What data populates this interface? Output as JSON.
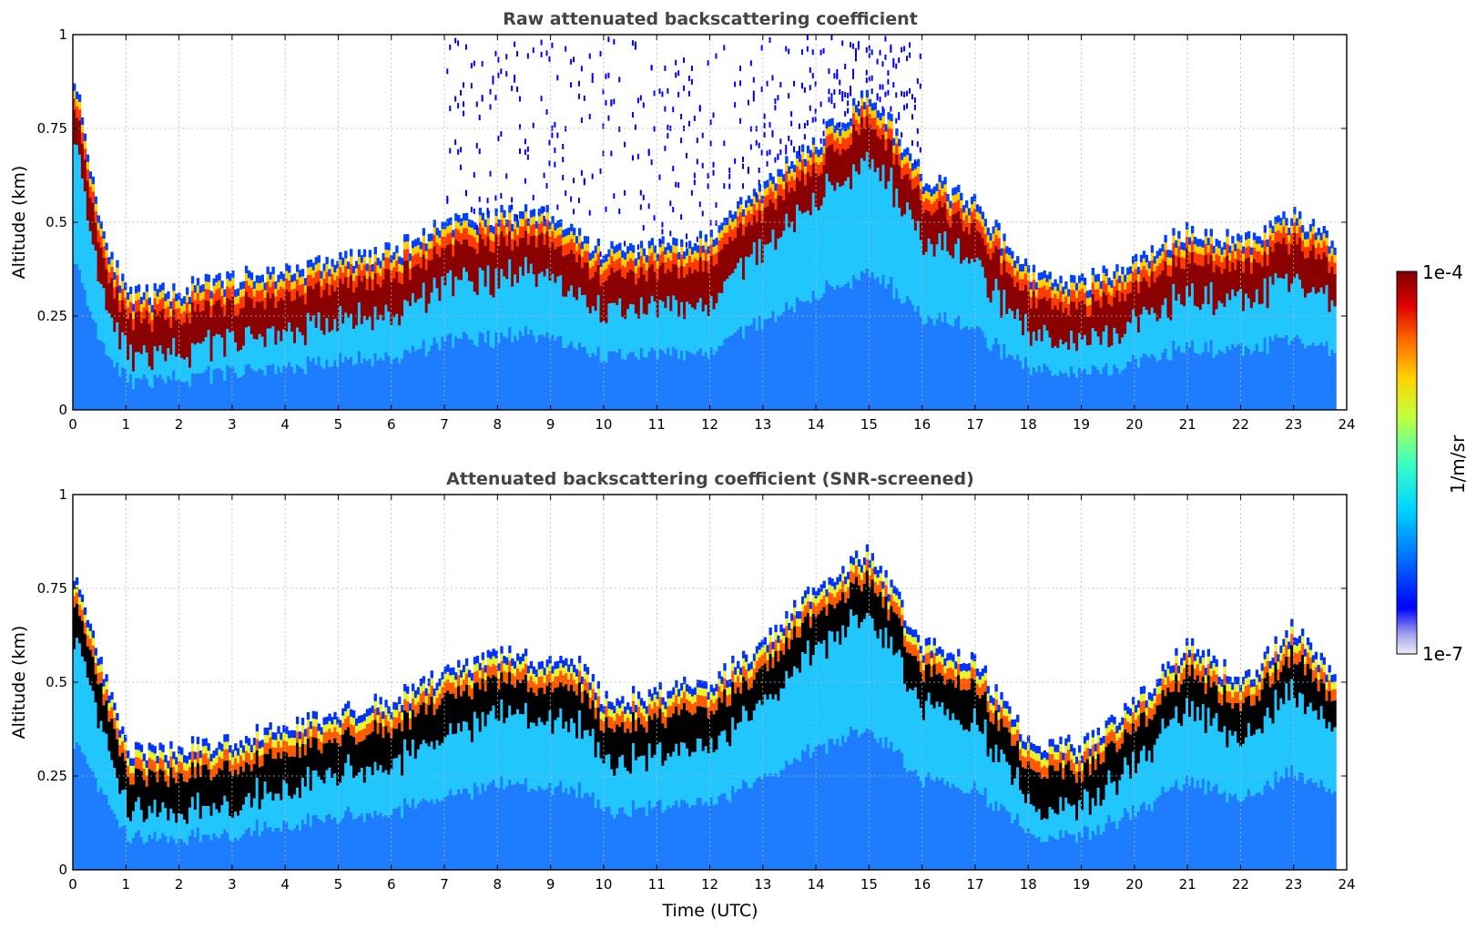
{
  "chart_data": [
    {
      "type": "heatmap",
      "title": "Raw attenuated backscattering coefficient",
      "xlabel": "",
      "ylabel": "Altitude (km)",
      "xlim": [
        0,
        24
      ],
      "ylim": [
        0,
        1
      ],
      "xticks": [
        "0",
        "1",
        "2",
        "3",
        "4",
        "5",
        "6",
        "7",
        "8",
        "9",
        "10",
        "11",
        "12",
        "13",
        "14",
        "15",
        "16",
        "17",
        "18",
        "19",
        "20",
        "21",
        "22",
        "23",
        "24"
      ],
      "yticks": [
        "0",
        "0.25",
        "0.5",
        "0.75",
        "1"
      ],
      "grid": true,
      "colorscale": "jet (log)",
      "snr_screened": false,
      "layer_top_km": {
        "time_utc": [
          0,
          0.5,
          1,
          2,
          3,
          4,
          5,
          6,
          7,
          8,
          9,
          9.5,
          10,
          11,
          12,
          13,
          13.5,
          14,
          15,
          16,
          17,
          18,
          19,
          20,
          21,
          22,
          23,
          23.8
        ],
        "altitude_km": [
          0.9,
          0.5,
          0.3,
          0.32,
          0.35,
          0.37,
          0.4,
          0.42,
          0.5,
          0.52,
          0.52,
          0.47,
          0.42,
          0.44,
          0.46,
          0.6,
          0.66,
          0.72,
          0.85,
          0.62,
          0.55,
          0.36,
          0.34,
          0.4,
          0.48,
          0.45,
          0.52,
          0.45
        ]
      }
    },
    {
      "type": "heatmap",
      "title": "Attenuated backscattering coefficient (SNR-screened)",
      "xlabel": "Time (UTC)",
      "ylabel": "Altitude (km)",
      "xlim": [
        0,
        24
      ],
      "ylim": [
        0,
        1
      ],
      "xticks": [
        "0",
        "1",
        "2",
        "3",
        "4",
        "5",
        "6",
        "7",
        "8",
        "9",
        "10",
        "11",
        "12",
        "13",
        "14",
        "15",
        "16",
        "17",
        "18",
        "19",
        "20",
        "21",
        "22",
        "23",
        "24"
      ],
      "yticks": [
        "0",
        "0.25",
        "0.5",
        "0.75",
        "1"
      ],
      "grid": true,
      "colorscale": "jet (log)",
      "snr_screened": true,
      "layer_top_km": {
        "time_utc": [
          0,
          0.5,
          1,
          2,
          3,
          4,
          5,
          6,
          7,
          8,
          9,
          9.5,
          10,
          11,
          12,
          13,
          13.5,
          14,
          15,
          16,
          17,
          18,
          19,
          20,
          21,
          22,
          23,
          23.8
        ],
        "altitude_km": [
          0.8,
          0.55,
          0.32,
          0.32,
          0.35,
          0.37,
          0.42,
          0.45,
          0.52,
          0.58,
          0.55,
          0.55,
          0.45,
          0.47,
          0.5,
          0.6,
          0.68,
          0.75,
          0.85,
          0.6,
          0.55,
          0.34,
          0.33,
          0.45,
          0.6,
          0.5,
          0.65,
          0.5
        ]
      }
    }
  ],
  "colorbar": {
    "max_label": "1e-4",
    "min_label": "1e-7",
    "unit_label": "1/m/sr",
    "colors": [
      "#ecebf7",
      "#c7c6f0",
      "#a09ff0",
      "#0000ff",
      "#0057ff",
      "#00a2ff",
      "#00e5ff",
      "#36ffc9",
      "#8fff70",
      "#e7ff17",
      "#ffc200",
      "#ff6a00",
      "#ff1a00",
      "#c40000",
      "#800000"
    ]
  }
}
